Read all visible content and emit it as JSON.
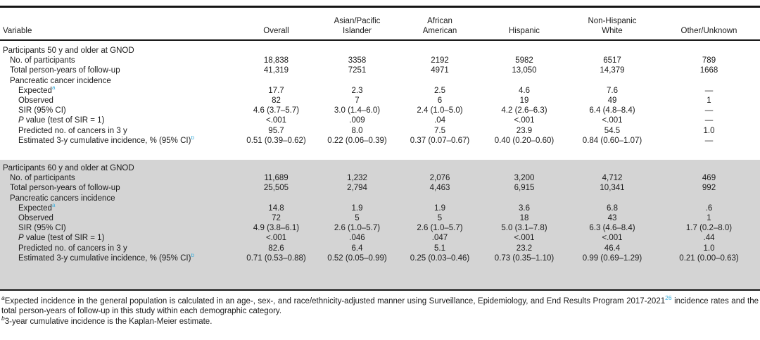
{
  "accent_colors": {
    "superscript_link": "#3eafdc",
    "section_shade": "#d4d4d4",
    "rule": "#151515"
  },
  "table": {
    "column_headers": [
      {
        "label": "Variable",
        "align": "left"
      },
      {
        "label": "Overall"
      },
      {
        "label": "Asian/Pacific\nIslander"
      },
      {
        "label": "African\nAmerican"
      },
      {
        "label": "Hispanic"
      },
      {
        "label": "Non-Hispanic\nWhite"
      },
      {
        "label": "Other/Unknown"
      }
    ],
    "sections": [
      {
        "title": "Participants 50 y and older at GNOD",
        "shaded": false,
        "rows": [
          {
            "label": "No. of participants",
            "indent": 1,
            "values": [
              "18,838",
              "3358",
              "2192",
              "5982",
              "6517",
              "789"
            ]
          },
          {
            "label": "Total person-years of follow-up",
            "indent": 1,
            "values": [
              "41,319",
              "7251",
              "4971",
              "13,050",
              "14,379",
              "1668"
            ]
          },
          {
            "label": "Pancreatic cancer incidence",
            "indent": 1,
            "values": [
              "",
              "",
              "",
              "",
              "",
              ""
            ]
          },
          {
            "label": "Expected",
            "sup": "a",
            "indent": 2,
            "values": [
              "17.7",
              "2.3",
              "2.5",
              "4.6",
              "7.6",
              "—"
            ]
          },
          {
            "label": "Observed",
            "indent": 2,
            "values": [
              "82",
              "7",
              "6",
              "19",
              "49",
              "1"
            ]
          },
          {
            "label": "SIR (95% CI)",
            "indent": 2,
            "values": [
              "4.6 (3.7–5.7)",
              "3.0 (1.4–6.0)",
              "2.4 (1.0–5.0)",
              "4.2 (2.6–6.3)",
              "6.4 (4.8–8.4)",
              "—"
            ]
          },
          {
            "label": "P value (test of SIR = 1)",
            "italic_first": true,
            "indent": 2,
            "values": [
              "<.001",
              ".009",
              ".04",
              "<.001",
              "<.001",
              "—"
            ]
          },
          {
            "label": "Predicted no. of cancers in 3 y",
            "indent": 2,
            "values": [
              "95.7",
              "8.0",
              "7.5",
              "23.9",
              "54.5",
              "1.0"
            ]
          },
          {
            "label": "Estimated 3-y cumulative incidence, % (95% CI)",
            "sup": "b",
            "indent": 2,
            "values": [
              "0.51 (0.39–0.62)",
              "0.22 (0.06–0.39)",
              "0.37 (0.07–0.67)",
              "0.40 (0.20–0.60)",
              "0.84 (0.60–1.07)",
              "—"
            ]
          }
        ]
      },
      {
        "title": "Participants 60 y and older at GNOD",
        "shaded": true,
        "rows": [
          {
            "label": "No. of participants",
            "indent": 1,
            "values": [
              "11,689",
              "1,232",
              "2,076",
              "3,200",
              "4,712",
              "469"
            ]
          },
          {
            "label": "Total person-years of follow-up",
            "indent": 1,
            "values": [
              "25,505",
              "2,794",
              "4,463",
              "6,915",
              "10,341",
              "992"
            ]
          },
          {
            "label": "Pancreatic cancers incidence",
            "indent": 1,
            "values": [
              "",
              "",
              "",
              "",
              "",
              ""
            ]
          },
          {
            "label": "Expected",
            "sup": "a",
            "indent": 2,
            "values": [
              "14.8",
              "1.9",
              "1.9",
              "3.6",
              "6.8",
              ".6"
            ]
          },
          {
            "label": "Observed",
            "indent": 2,
            "values": [
              "72",
              "5",
              "5",
              "18",
              "43",
              "1"
            ]
          },
          {
            "label": "SIR (95% CI)",
            "indent": 2,
            "values": [
              "4.9 (3.8–6.1)",
              "2.6 (1.0–5.7)",
              "2.6 (1.0–5.7)",
              "5.0 (3.1–7.8)",
              "6.3 (4.6–8.4)",
              "1.7 (0.2–8.0)"
            ]
          },
          {
            "label": "P value (test of SIR = 1)",
            "italic_first": true,
            "indent": 2,
            "values": [
              "<.001",
              ".046",
              ".047",
              "<.001",
              "<.001",
              ".44"
            ]
          },
          {
            "label": "Predicted no. of cancers in 3 y",
            "indent": 2,
            "values": [
              "82.6",
              "6.4",
              "5.1",
              "23.2",
              "46.4",
              "1.0"
            ]
          },
          {
            "label": "Estimated 3-y cumulative incidence, % (95% CI)",
            "sup": "b",
            "indent": 2,
            "values": [
              "0.71 (0.53–0.88)",
              "0.52 (0.05–0.99)",
              "0.25 (0.03–0.46)",
              "0.73 (0.35–1.10)",
              "0.99 (0.69–1.29)",
              "0.21 (0.00–0.63)"
            ]
          }
        ]
      }
    ],
    "footnotes": [
      {
        "marker": "a",
        "parts": [
          {
            "text": "Expected incidence in the general population is calculated in an age-, sex-, and race/ethnicity-adjusted manner using Surveillance, Epidemiology, and End Results Program 2017-2021"
          },
          {
            "sup": "26"
          },
          {
            "text": " incidence rates and the total person-years of follow-up in this study within each demographic category."
          }
        ]
      },
      {
        "marker": "b",
        "parts": [
          {
            "text": "3-year cumulative incidence is the Kaplan-Meier estimate."
          }
        ]
      }
    ]
  }
}
